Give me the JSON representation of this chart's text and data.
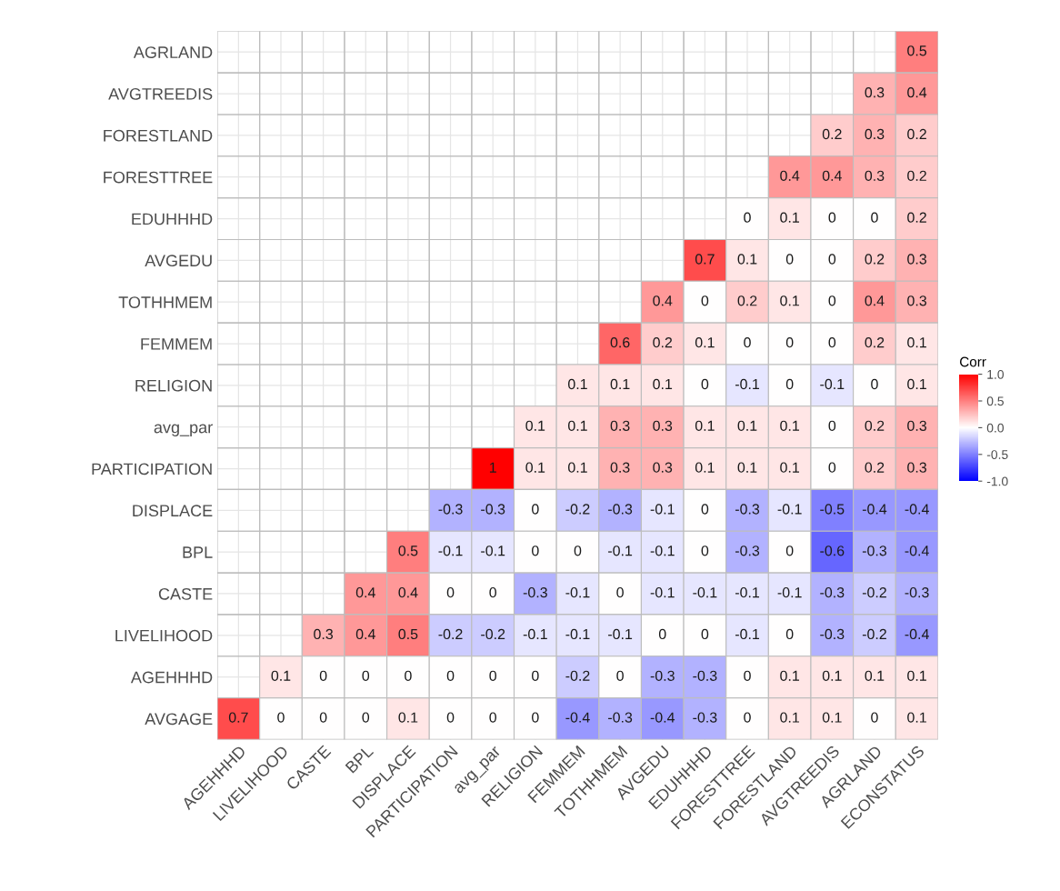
{
  "chart_data": {
    "type": "heatmap",
    "clabel": "Corr",
    "data_labels": true,
    "grid": true,
    "categories": [
      "AGEHHHD",
      "LIVELIHOOD",
      "CASTE",
      "BPL",
      "DISPLACE",
      "PARTICIPATION",
      "avg_par",
      "RELIGION",
      "FEMMEM",
      "TOTHHMEM",
      "AVGEDU",
      "EDUHHHD",
      "FORESTTREE",
      "FORESTLAND",
      "AVGTREEDIS",
      "AGRLAND",
      "ECONSTATUS"
    ],
    "y_categories": [
      "AGRLAND",
      "AVGTREEDIS",
      "FORESTLAND",
      "FORESTTREE",
      "EDUHHHD",
      "AVGEDU",
      "TOTHHMEM",
      "FEMMEM",
      "RELIGION",
      "avg_par",
      "PARTICIPATION",
      "DISPLACE",
      "BPL",
      "CASTE",
      "LIVELIHOOD",
      "AGEHHHD",
      "AVGAGE"
    ],
    "cells": [
      [
        null,
        null,
        null,
        null,
        null,
        null,
        null,
        null,
        null,
        null,
        null,
        null,
        null,
        null,
        null,
        null,
        0.5
      ],
      [
        null,
        null,
        null,
        null,
        null,
        null,
        null,
        null,
        null,
        null,
        null,
        null,
        null,
        null,
        null,
        0.3,
        0.4
      ],
      [
        null,
        null,
        null,
        null,
        null,
        null,
        null,
        null,
        null,
        null,
        null,
        null,
        null,
        null,
        0.2,
        0.3,
        0.2
      ],
      [
        null,
        null,
        null,
        null,
        null,
        null,
        null,
        null,
        null,
        null,
        null,
        null,
        null,
        0.4,
        0.4,
        0.3,
        0.2
      ],
      [
        null,
        null,
        null,
        null,
        null,
        null,
        null,
        null,
        null,
        null,
        null,
        null,
        0,
        0.1,
        0,
        0,
        0.2
      ],
      [
        null,
        null,
        null,
        null,
        null,
        null,
        null,
        null,
        null,
        null,
        null,
        0.7,
        0.1,
        0,
        0,
        0.2,
        0.3
      ],
      [
        null,
        null,
        null,
        null,
        null,
        null,
        null,
        null,
        null,
        null,
        0.4,
        0,
        0.2,
        0.1,
        0,
        0.4,
        0.3
      ],
      [
        null,
        null,
        null,
        null,
        null,
        null,
        null,
        null,
        null,
        0.6,
        0.2,
        0.1,
        0,
        0,
        0,
        0.2,
        0.1
      ],
      [
        null,
        null,
        null,
        null,
        null,
        null,
        null,
        null,
        0.1,
        0.1,
        0.1,
        0,
        -0.1,
        0,
        -0.1,
        0,
        0.1
      ],
      [
        null,
        null,
        null,
        null,
        null,
        null,
        null,
        0.1,
        0.1,
        0.3,
        0.3,
        0.1,
        0.1,
        0.1,
        0,
        0.2,
        0.3
      ],
      [
        null,
        null,
        null,
        null,
        null,
        null,
        1,
        0.1,
        0.1,
        0.3,
        0.3,
        0.1,
        0.1,
        0.1,
        0,
        0.2,
        0.3
      ],
      [
        null,
        null,
        null,
        null,
        null,
        -0.3,
        -0.3,
        0,
        -0.2,
        -0.3,
        -0.1,
        0,
        -0.3,
        -0.1,
        -0.5,
        -0.4,
        -0.4
      ],
      [
        null,
        null,
        null,
        null,
        0.5,
        -0.1,
        -0.1,
        0,
        0,
        -0.1,
        -0.1,
        0,
        -0.3,
        0,
        -0.6,
        -0.3,
        -0.4
      ],
      [
        null,
        null,
        null,
        0.4,
        0.4,
        0,
        0,
        -0.3,
        -0.1,
        0,
        -0.1,
        -0.1,
        -0.1,
        -0.1,
        -0.3,
        -0.2,
        -0.3
      ],
      [
        null,
        null,
        0.3,
        0.4,
        0.5,
        -0.2,
        -0.2,
        -0.1,
        -0.1,
        -0.1,
        0,
        0,
        -0.1,
        0,
        -0.3,
        -0.2,
        -0.4
      ],
      [
        null,
        0.1,
        0,
        0,
        0,
        0,
        0,
        0,
        -0.2,
        0,
        -0.3,
        -0.3,
        0,
        0.1,
        0.1,
        0.1,
        0.1
      ],
      [
        0.7,
        0,
        0,
        0,
        0.1,
        0,
        0,
        0,
        -0.4,
        -0.3,
        -0.4,
        -0.3,
        0,
        0.1,
        0.1,
        0,
        0.1
      ]
    ],
    "clim": [
      -1,
      1
    ],
    "cticks": [
      {
        "value": -1,
        "label": "-1.0"
      },
      {
        "value": -0.5,
        "label": "-0.5"
      },
      {
        "value": 0,
        "label": "0.0"
      },
      {
        "value": 0.5,
        "label": "0.5"
      },
      {
        "value": 1,
        "label": "1.0"
      }
    ]
  }
}
